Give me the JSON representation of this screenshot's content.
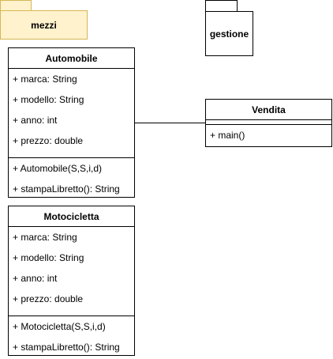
{
  "packages": {
    "mezzi": {
      "label": "mezzi",
      "fill": "#fff2cc",
      "stroke": "#d6b656"
    },
    "gestione": {
      "label": "gestione"
    }
  },
  "classes": {
    "automobile": {
      "name": "Automobile",
      "attributes": [
        "+ marca: String",
        "+ modello: String",
        "+ anno: int",
        "+ prezzo: double"
      ],
      "methods": [
        "+ Automobile(S,S,i,d)",
        "+ stampaLibretto(): String"
      ]
    },
    "motocicletta": {
      "name": "Motocicletta",
      "attributes": [
        "+ marca: String",
        "+ modello: String",
        "+ anno: int",
        "+ prezzo: double"
      ],
      "methods": [
        "+ Motocicletta(S,S,i,d)",
        "+ stampaLibretto(): String"
      ]
    },
    "vendita": {
      "name": "Vendita",
      "attributes": [],
      "methods": [
        "+ main()"
      ]
    }
  },
  "connections": [
    {
      "from": "automobile",
      "to": "vendita",
      "type": "association"
    }
  ]
}
